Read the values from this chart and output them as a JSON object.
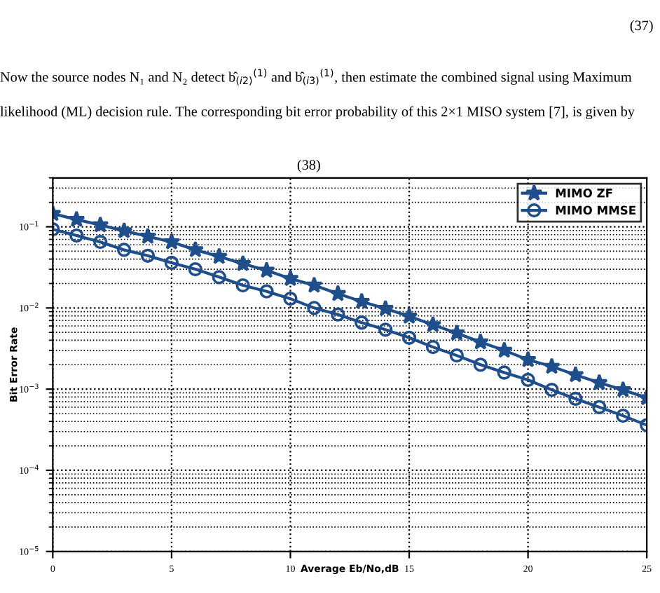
{
  "chart_data": {
    "type": "line",
    "xlabel": "Average Eb/No,dB",
    "ylabel": "Bit Error Rate",
    "annotations": [
      "(37)",
      "Now the source nodes N₁ and N₂ detect b̂$_{(i2)}$$^{(1)}$ and b̂$_{(i3)}$$^{(1)}$, then estimate the combined signal using Maximum",
      "likelihood (ML) decision rule. The corresponding bit error probability of this 2×1 MISO system [7], is given by",
      "(38)"
    ],
    "x": [
      0,
      1,
      2,
      3,
      4,
      5,
      6,
      7,
      8,
      9,
      10,
      11,
      12,
      13,
      14,
      15,
      16,
      17,
      18,
      19,
      20,
      21,
      22,
      23,
      24,
      25
    ],
    "series": [
      {
        "name": "MIMO ZF",
        "color": "#1f4e8c",
        "marker": "star",
        "values": [
          0.145,
          0.123,
          0.105,
          0.089,
          0.076,
          0.065,
          0.052,
          0.043,
          0.035,
          0.029,
          0.023,
          0.019,
          0.015,
          0.012,
          0.0098,
          0.0079,
          0.0062,
          0.0049,
          0.0038,
          0.003,
          0.0023,
          0.0019,
          0.0015,
          0.0012,
          0.00098,
          0.00078
        ]
      },
      {
        "name": "MIMO MMSE",
        "color": "#1f4e8c",
        "marker": "circle",
        "values": [
          0.093,
          0.078,
          0.065,
          0.052,
          0.044,
          0.036,
          0.03,
          0.024,
          0.019,
          0.016,
          0.013,
          0.01,
          0.0083,
          0.0066,
          0.0054,
          0.0043,
          0.0033,
          0.0026,
          0.002,
          0.0016,
          0.0013,
          0.00098,
          0.00076,
          0.0006,
          0.00047,
          0.00036
        ]
      }
    ],
    "log": "y",
    "xlim": [
      0,
      25
    ],
    "xticks": [
      0,
      5,
      10,
      15,
      20,
      25
    ],
    "ylim": [
      1e-05,
      0.4
    ],
    "yticks": [
      {
        "value": 1e-05,
        "label": "10$^{−5}$"
      },
      {
        "value": 0.0001,
        "label": "10$^{−4}$"
      },
      {
        "value": 0.001,
        "label": "10$^{−3}$"
      },
      {
        "value": 0.01,
        "label": "10$^{−2}$"
      },
      {
        "value": 0.1,
        "label": "10$^{−1}$"
      }
    ],
    "grid": true,
    "legend": "top right",
    "line_style": "solid"
  }
}
